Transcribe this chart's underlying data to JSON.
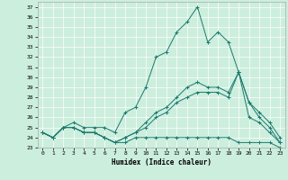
{
  "title": "",
  "xlabel": "Humidex (Indice chaleur)",
  "ylabel": "",
  "background_color": "#cceedd",
  "grid_color": "#ffffff",
  "line_color": "#1a7a6e",
  "xlim": [
    -0.5,
    23.5
  ],
  "ylim": [
    23,
    37.5
  ],
  "yticks": [
    23,
    24,
    25,
    26,
    27,
    28,
    29,
    30,
    31,
    32,
    33,
    34,
    35,
    36,
    37
  ],
  "xticks": [
    0,
    1,
    2,
    3,
    4,
    5,
    6,
    7,
    8,
    9,
    10,
    11,
    12,
    13,
    14,
    15,
    16,
    17,
    18,
    19,
    20,
    21,
    22,
    23
  ],
  "series": [
    {
      "x": [
        0,
        1,
        2,
        3,
        4,
        5,
        6,
        7,
        8,
        9,
        10,
        11,
        12,
        13,
        14,
        15,
        16,
        17,
        18,
        19,
        20,
        21,
        22,
        23
      ],
      "y": [
        24.5,
        24.0,
        25.0,
        25.0,
        24.5,
        24.5,
        24.0,
        23.5,
        23.5,
        24.0,
        24.0,
        24.0,
        24.0,
        24.0,
        24.0,
        24.0,
        24.0,
        24.0,
        24.0,
        23.5,
        23.5,
        23.5,
        23.5,
        23.0
      ]
    },
    {
      "x": [
        0,
        1,
        2,
        3,
        4,
        5,
        6,
        7,
        8,
        9,
        10,
        11,
        12,
        13,
        14,
        15,
        16,
        17,
        18,
        19,
        20,
        21,
        22,
        23
      ],
      "y": [
        24.5,
        24.0,
        25.0,
        25.5,
        25.0,
        25.0,
        25.0,
        24.5,
        26.5,
        27.0,
        29.0,
        32.0,
        32.5,
        34.5,
        35.5,
        37.0,
        33.5,
        34.5,
        33.5,
        30.5,
        26.0,
        25.5,
        24.5,
        23.5
      ]
    },
    {
      "x": [
        0,
        1,
        2,
        3,
        4,
        5,
        6,
        7,
        8,
        9,
        10,
        11,
        12,
        13,
        14,
        15,
        16,
        17,
        18,
        19,
        20,
        21,
        22,
        23
      ],
      "y": [
        24.5,
        24.0,
        25.0,
        25.0,
        24.5,
        24.5,
        24.0,
        23.5,
        24.0,
        24.5,
        25.5,
        26.5,
        27.0,
        28.0,
        29.0,
        29.5,
        29.0,
        29.0,
        28.5,
        30.5,
        27.5,
        26.0,
        25.0,
        23.5
      ]
    },
    {
      "x": [
        0,
        1,
        2,
        3,
        4,
        5,
        6,
        7,
        8,
        9,
        10,
        11,
        12,
        13,
        14,
        15,
        16,
        17,
        18,
        19,
        20,
        21,
        22,
        23
      ],
      "y": [
        24.5,
        24.0,
        25.0,
        25.0,
        24.5,
        24.5,
        24.0,
        23.5,
        24.0,
        24.5,
        25.0,
        26.0,
        26.5,
        27.5,
        28.0,
        28.5,
        28.5,
        28.5,
        28.0,
        30.5,
        27.5,
        26.5,
        25.5,
        24.0
      ]
    }
  ]
}
